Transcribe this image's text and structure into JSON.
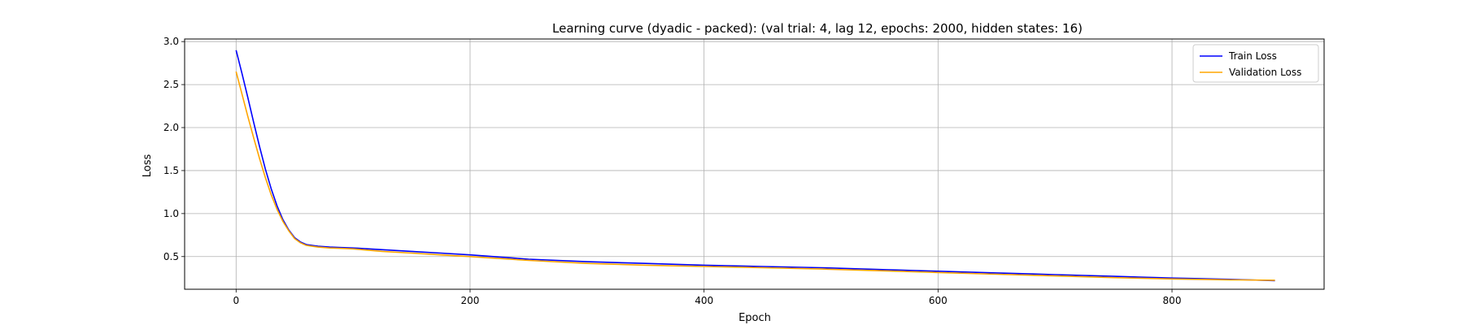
{
  "chart_data": {
    "type": "line",
    "title": "Learning curve (dyadic - packed): (val trial: 4, lag 12, epochs: 2000, hidden states: 16)",
    "xlabel": "Epoch",
    "ylabel": "Loss",
    "xlim": [
      -44,
      930
    ],
    "ylim": [
      0.12,
      3.03
    ],
    "xticks": [
      0,
      200,
      400,
      600,
      800
    ],
    "xtick_labels": [
      "0",
      "200",
      "400",
      "600",
      "800"
    ],
    "yticks": [
      0.5,
      1.0,
      1.5,
      2.0,
      2.5,
      3.0
    ],
    "ytick_labels": [
      "0.5",
      "1.0",
      "1.5",
      "2.0",
      "2.5",
      "3.0"
    ],
    "grid": true,
    "legend_position": "top-right",
    "series": [
      {
        "name": "Train Loss",
        "color": "#0000ff",
        "x": [
          0,
          5,
          10,
          15,
          20,
          25,
          30,
          35,
          40,
          45,
          50,
          55,
          60,
          70,
          80,
          90,
          100,
          125,
          150,
          175,
          200,
          250,
          300,
          350,
          400,
          450,
          500,
          550,
          600,
          650,
          700,
          750,
          800,
          850,
          888
        ],
        "y": [
          2.9,
          2.63,
          2.35,
          2.06,
          1.78,
          1.52,
          1.29,
          1.09,
          0.93,
          0.81,
          0.72,
          0.67,
          0.64,
          0.62,
          0.61,
          0.605,
          0.6,
          0.58,
          0.56,
          0.54,
          0.52,
          0.47,
          0.44,
          0.42,
          0.4,
          0.385,
          0.37,
          0.35,
          0.33,
          0.31,
          0.29,
          0.27,
          0.25,
          0.235,
          0.22
        ]
      },
      {
        "name": "Validation Loss",
        "color": "#ffa500",
        "x": [
          0,
          5,
          10,
          15,
          20,
          25,
          30,
          35,
          40,
          45,
          50,
          55,
          60,
          70,
          80,
          90,
          100,
          125,
          150,
          175,
          200,
          250,
          300,
          350,
          400,
          450,
          500,
          550,
          600,
          650,
          700,
          750,
          800,
          850,
          888
        ],
        "y": [
          2.65,
          2.39,
          2.13,
          1.88,
          1.64,
          1.42,
          1.22,
          1.05,
          0.91,
          0.8,
          0.71,
          0.66,
          0.63,
          0.61,
          0.6,
          0.595,
          0.59,
          0.56,
          0.54,
          0.52,
          0.5,
          0.455,
          0.42,
          0.4,
          0.385,
          0.37,
          0.355,
          0.335,
          0.315,
          0.295,
          0.275,
          0.255,
          0.24,
          0.23,
          0.225
        ]
      }
    ]
  }
}
